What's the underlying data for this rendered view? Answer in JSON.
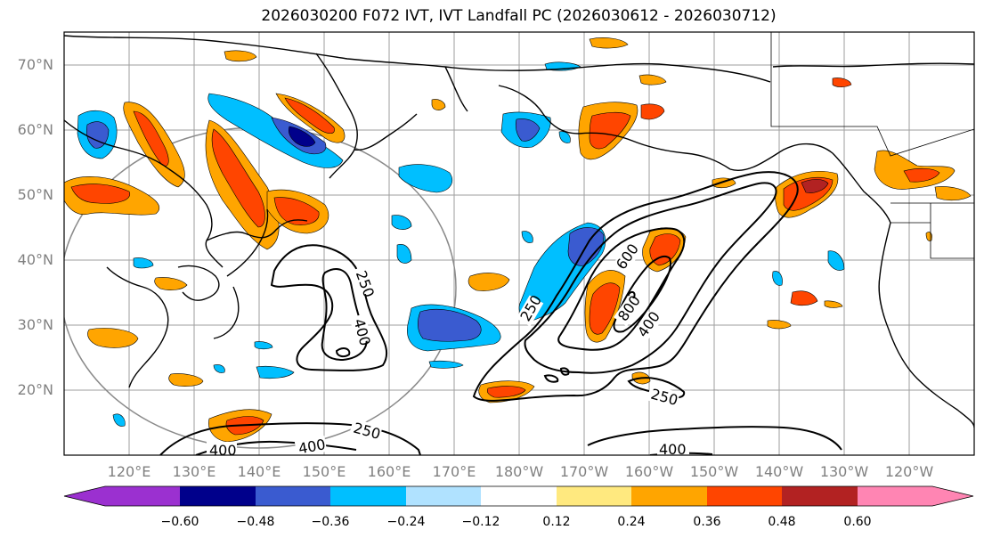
{
  "title": "2026030200 F072 IVT, IVT Landfall PC (2026030612 - 2026030712)",
  "map": {
    "lon_range": [
      110,
      250
    ],
    "lat_range": [
      10,
      75
    ],
    "lat_labels": [
      "20°N",
      "30°N",
      "40°N",
      "50°N",
      "60°N",
      "70°N"
    ],
    "lon_labels": [
      "120°E",
      "130°E",
      "140°E",
      "150°E",
      "160°E",
      "170°E",
      "180°W",
      "170°W",
      "160°W",
      "150°W",
      "140°W",
      "130°W",
      "120°W"
    ],
    "gridlines": true,
    "contour_levels": [
      "250",
      "400",
      "600",
      "800"
    ],
    "contour_labels": [
      {
        "text": "250"
      },
      {
        "text": "400"
      },
      {
        "text": "250"
      },
      {
        "text": "600"
      },
      {
        "text": "800"
      },
      {
        "text": "400"
      },
      {
        "text": "250"
      },
      {
        "text": "250"
      },
      {
        "text": "400"
      },
      {
        "text": "400"
      },
      {
        "text": "400"
      }
    ]
  },
  "colorbar": {
    "tick_labels": [
      "−0.60",
      "−0.48",
      "−0.36",
      "−0.24",
      "−0.12",
      "0.12",
      "0.24",
      "0.36",
      "0.48",
      "0.60"
    ],
    "colors": [
      "#9b30d0",
      "#00008b",
      "#3a5bd0",
      "#00bfff",
      "#b0e2ff",
      "#ffffff",
      "#ffe97f",
      "#ffa500",
      "#ff4500",
      "#b22222",
      "#ff85b3"
    ]
  }
}
